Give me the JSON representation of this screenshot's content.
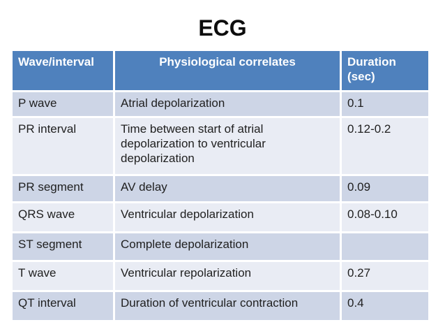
{
  "title": "ECG",
  "table": {
    "columns": [
      {
        "label": "Wave/interval",
        "align": "left"
      },
      {
        "label": "Physiological correlates",
        "align": "center"
      },
      {
        "label": "Duration (sec)",
        "align": "left"
      }
    ],
    "rows": [
      [
        "P wave",
        "Atrial depolarization",
        "0.1"
      ],
      [
        "PR interval",
        "Time between start of atrial depolarization to ventricular depolarization",
        "0.12-0.2"
      ],
      [
        "PR segment",
        "AV delay",
        "0.09"
      ],
      [
        "QRS wave",
        "Ventricular depolarization",
        "0.08-0.10"
      ],
      [
        "ST segment",
        "Complete depolarization",
        ""
      ],
      [
        "T wave",
        "Ventricular repolarization",
        "0.27"
      ],
      [
        "QT interval",
        "Duration of ventricular contraction",
        "0.4"
      ]
    ]
  },
  "colors": {
    "header_bg": "#4f81bd",
    "header_text": "#ffffff",
    "band_odd": "#cdd5e6",
    "band_even": "#e9ecf4",
    "body_text": "#1f1f1f",
    "title_text": "#0d0d0d",
    "page_bg": "#ffffff"
  }
}
